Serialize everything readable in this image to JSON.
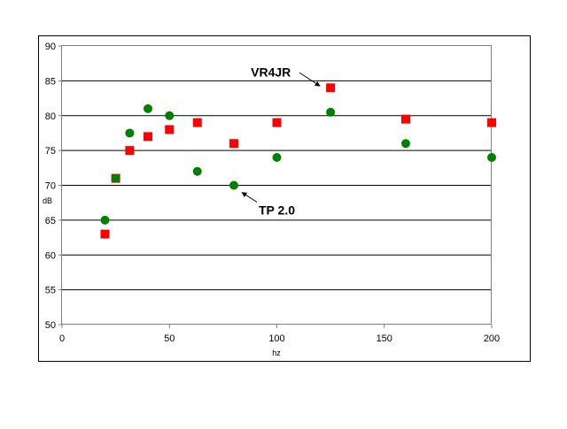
{
  "chart_data": {
    "type": "scatter",
    "title": "",
    "xlabel": "hz",
    "ylabel": "dB",
    "xlim": [
      0,
      200
    ],
    "ylim": [
      50,
      90
    ],
    "xticks": [
      0,
      50,
      100,
      150,
      200
    ],
    "yticks": [
      50,
      55,
      60,
      65,
      70,
      75,
      80,
      85,
      90
    ],
    "grid": "horizontal",
    "legend": "none",
    "series": [
      {
        "marker": "square",
        "color": "#ff0000",
        "x": [
          20,
          25,
          31.5,
          40,
          50,
          63,
          80,
          100,
          125,
          160,
          200
        ],
        "y": [
          63,
          71,
          75,
          77,
          78,
          79,
          76,
          79,
          84,
          79.5,
          79
        ]
      },
      {
        "marker": "circle",
        "color": "#008000",
        "x": [
          20,
          25,
          31.5,
          40,
          50,
          63,
          80,
          100,
          125,
          160,
          200
        ],
        "y": [
          65,
          71,
          77.5,
          81,
          80,
          72,
          70,
          74,
          80.5,
          76,
          74
        ]
      }
    ],
    "annotations": [
      {
        "text": "VR4JR",
        "points_to": {
          "series": 0,
          "index": 8
        },
        "side": "upper-left"
      },
      {
        "text": "TP 2.0",
        "points_to": {
          "series": 1,
          "index": 6
        },
        "side": "lower-right"
      }
    ]
  }
}
